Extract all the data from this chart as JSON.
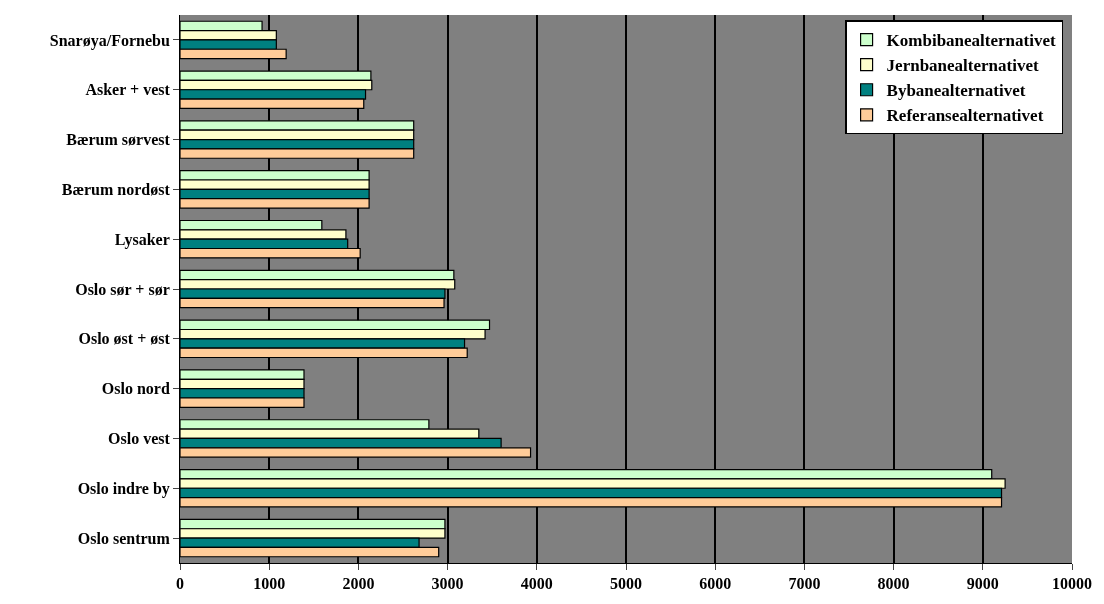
{
  "chart_data": {
    "type": "bar",
    "orientation": "horizontal",
    "categories": [
      "Snarøya/Fornebu",
      "Asker + vest",
      "Bærum sørvest",
      "Bærum nordøst",
      "Lysaker",
      "Oslo sør + sør",
      "Oslo øst + øst",
      "Oslo nord",
      "Oslo vest",
      "Oslo indre by",
      "Oslo sentrum"
    ],
    "series": [
      {
        "name": "Kombibanealternativet",
        "color": "#ccffcc",
        "values": [
          920,
          2140,
          2620,
          2120,
          1590,
          3070,
          3470,
          1390,
          2790,
          9100,
          2970
        ]
      },
      {
        "name": "Jernbanealternativet",
        "color": "#ffffcc",
        "values": [
          1080,
          2150,
          2620,
          2120,
          1860,
          3080,
          3420,
          1390,
          3350,
          9250,
          2970
        ]
      },
      {
        "name": "Bybanealternativet",
        "color": "#008080",
        "values": [
          1080,
          2080,
          2620,
          2120,
          1880,
          2970,
          3190,
          1390,
          3600,
          9210,
          2680
        ]
      },
      {
        "name": "Referansealternativet",
        "color": "#ffcc99",
        "values": [
          1190,
          2060,
          2620,
          2120,
          2020,
          2960,
          3220,
          1390,
          3930,
          9210,
          2900
        ]
      }
    ],
    "xlim": [
      0,
      10000
    ],
    "xticks": [
      0,
      1000,
      2000,
      3000,
      4000,
      5000,
      6000,
      7000,
      8000,
      9000,
      10000
    ],
    "grid": "x",
    "legend": "top right"
  }
}
